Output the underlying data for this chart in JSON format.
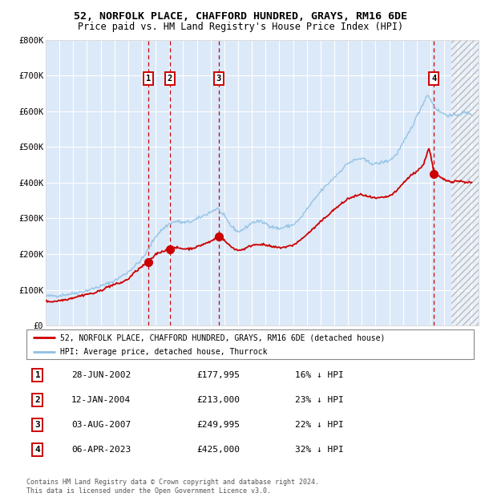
{
  "title": "52, NORFOLK PLACE, CHAFFORD HUNDRED, GRAYS, RM16 6DE",
  "subtitle": "Price paid vs. HM Land Registry's House Price Index (HPI)",
  "ylim": [
    0,
    800000
  ],
  "yticks": [
    0,
    100000,
    200000,
    300000,
    400000,
    500000,
    600000,
    700000,
    800000
  ],
  "ytick_labels": [
    "£0",
    "£100K",
    "£200K",
    "£300K",
    "£400K",
    "£500K",
    "£600K",
    "£700K",
    "£800K"
  ],
  "plot_bg_color": "#dce9f8",
  "hpi_line_color": "#8ec0e4",
  "price_line_color": "#cc0000",
  "marker_color": "#cc0000",
  "vline_color": "#cc0000",
  "transactions": [
    {
      "label": "1",
      "date_num": 2002.49,
      "price": 177995
    },
    {
      "label": "2",
      "date_num": 2004.04,
      "price": 213000
    },
    {
      "label": "3",
      "date_num": 2007.58,
      "price": 249995
    },
    {
      "label": "4",
      "date_num": 2023.26,
      "price": 425000
    }
  ],
  "legend_price_label": "52, NORFOLK PLACE, CHAFFORD HUNDRED, GRAYS, RM16 6DE (detached house)",
  "legend_hpi_label": "HPI: Average price, detached house, Thurrock",
  "table_rows": [
    {
      "num": "1",
      "date": "28-JUN-2002",
      "price": "£177,995",
      "hpi": "16% ↓ HPI"
    },
    {
      "num": "2",
      "date": "12-JAN-2004",
      "price": "£213,000",
      "hpi": "23% ↓ HPI"
    },
    {
      "num": "3",
      "date": "03-AUG-2007",
      "price": "£249,995",
      "hpi": "22% ↓ HPI"
    },
    {
      "num": "4",
      "date": "06-APR-2023",
      "price": "£425,000",
      "hpi": "32% ↓ HPI"
    }
  ],
  "footnote": "Contains HM Land Registry data © Crown copyright and database right 2024.\nThis data is licensed under the Open Government Licence v3.0.",
  "xlim_start": 1995.0,
  "xlim_end": 2026.5,
  "hatch_start": 2024.5,
  "xticks": [
    1995,
    1996,
    1997,
    1998,
    1999,
    2000,
    2001,
    2002,
    2003,
    2004,
    2005,
    2006,
    2007,
    2008,
    2009,
    2010,
    2011,
    2012,
    2013,
    2014,
    2015,
    2016,
    2017,
    2018,
    2019,
    2020,
    2021,
    2022,
    2023,
    2024,
    2025,
    2026
  ],
  "hpi_waypoints_x": [
    1995.0,
    1996.0,
    1997.0,
    1998.0,
    1999.0,
    2000.0,
    2001.0,
    2002.0,
    2002.5,
    2003.0,
    2003.5,
    2004.0,
    2004.5,
    2005.0,
    2005.5,
    2006.0,
    2006.5,
    2007.0,
    2007.5,
    2008.0,
    2008.5,
    2009.0,
    2009.5,
    2010.0,
    2010.5,
    2011.0,
    2011.5,
    2012.0,
    2012.5,
    2013.0,
    2013.5,
    2014.0,
    2014.5,
    2015.0,
    2015.5,
    2016.0,
    2016.5,
    2017.0,
    2017.5,
    2018.0,
    2018.5,
    2019.0,
    2019.5,
    2020.0,
    2020.5,
    2021.0,
    2021.5,
    2022.0,
    2022.5,
    2022.8,
    2023.0,
    2023.26,
    2023.5,
    2024.0,
    2024.5,
    2025.0,
    2025.5,
    2026.0
  ],
  "hpi_waypoints_y": [
    82000,
    84000,
    90000,
    98000,
    110000,
    125000,
    150000,
    185000,
    215000,
    250000,
    270000,
    285000,
    292000,
    288000,
    290000,
    298000,
    308000,
    318000,
    328000,
    305000,
    278000,
    262000,
    272000,
    288000,
    292000,
    286000,
    276000,
    271000,
    277000,
    282000,
    298000,
    325000,
    350000,
    375000,
    395000,
    415000,
    435000,
    455000,
    463000,
    468000,
    457000,
    452000,
    457000,
    462000,
    478000,
    510000,
    545000,
    585000,
    625000,
    648000,
    632000,
    615000,
    603000,
    592000,
    587000,
    591000,
    596000,
    593000
  ],
  "price_waypoints_x": [
    1995.0,
    1995.5,
    1996.0,
    1996.5,
    1997.0,
    1997.5,
    1998.0,
    1998.5,
    1999.0,
    1999.5,
    2000.0,
    2000.5,
    2001.0,
    2001.5,
    2002.0,
    2002.49,
    2002.6,
    2003.0,
    2003.5,
    2004.04,
    2004.2,
    2004.5,
    2005.0,
    2005.5,
    2006.0,
    2006.5,
    2007.0,
    2007.58,
    2007.8,
    2008.0,
    2008.5,
    2009.0,
    2009.5,
    2010.0,
    2010.5,
    2011.0,
    2011.5,
    2012.0,
    2012.5,
    2013.0,
    2013.5,
    2014.0,
    2014.5,
    2015.0,
    2015.5,
    2016.0,
    2016.5,
    2017.0,
    2017.5,
    2018.0,
    2018.5,
    2019.0,
    2019.5,
    2020.0,
    2020.5,
    2021.0,
    2021.5,
    2022.0,
    2022.5,
    2022.8,
    2022.9,
    2023.0,
    2023.26,
    2023.4,
    2023.5,
    2024.0,
    2024.5,
    2025.0,
    2025.5,
    2026.0
  ],
  "price_waypoints_y": [
    68000,
    67000,
    70000,
    73000,
    78000,
    83000,
    88000,
    90000,
    98000,
    108000,
    115000,
    120000,
    130000,
    150000,
    165000,
    177995,
    182000,
    200000,
    208000,
    213000,
    215000,
    218000,
    215000,
    215000,
    220000,
    228000,
    235000,
    249995,
    248000,
    238000,
    220000,
    210000,
    215000,
    225000,
    228000,
    225000,
    220000,
    218000,
    220000,
    225000,
    238000,
    255000,
    272000,
    290000,
    308000,
    325000,
    340000,
    355000,
    362000,
    367000,
    360000,
    356000,
    358000,
    362000,
    375000,
    398000,
    418000,
    432000,
    450000,
    490000,
    495000,
    480000,
    425000,
    425000,
    420000,
    408000,
    403000,
    405000,
    402000,
    400000
  ]
}
